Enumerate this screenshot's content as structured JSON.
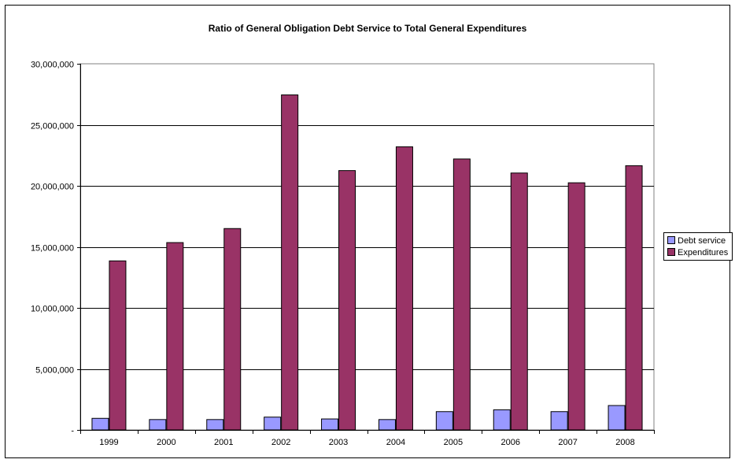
{
  "chart_data": {
    "type": "bar",
    "title": "Ratio of General Obligation Debt Service to Total General Expenditures",
    "xlabel": "",
    "ylabel": "",
    "categories": [
      "1999",
      "2000",
      "2001",
      "2002",
      "2003",
      "2004",
      "2005",
      "2006",
      "2007",
      "2008"
    ],
    "series": [
      {
        "name": "Debt service",
        "color": "#9999ff",
        "values": [
          950000,
          850000,
          850000,
          1050000,
          900000,
          850000,
          1500000,
          1650000,
          1500000,
          2000000
        ]
      },
      {
        "name": "Expenditures",
        "color": "#993366",
        "values": [
          13850000,
          15350000,
          16500000,
          27450000,
          21250000,
          23200000,
          22200000,
          21050000,
          20250000,
          21650000
        ]
      }
    ],
    "ylim": [
      0,
      30000000
    ],
    "yticks": [
      0,
      5000000,
      10000000,
      15000000,
      20000000,
      25000000,
      30000000
    ],
    "ytick_labels": [
      "-",
      "5,000,000",
      "10,000,000",
      "15,000,000",
      "20,000,000",
      "25,000,000",
      "30,000,000"
    ],
    "grid": true,
    "legend_position": "right"
  }
}
